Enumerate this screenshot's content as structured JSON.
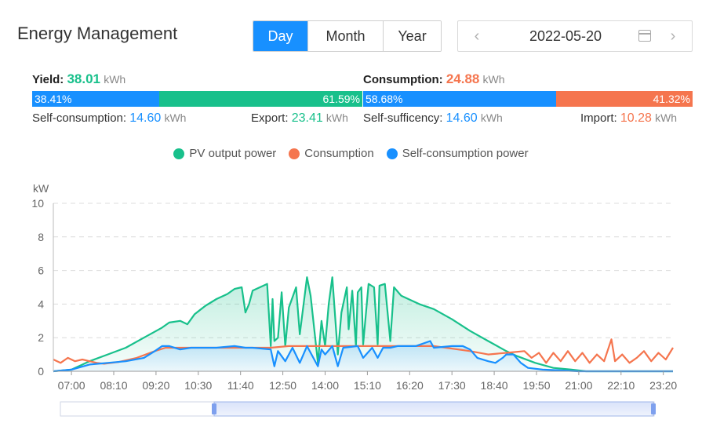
{
  "header": {
    "title": "Energy Management",
    "tabs": [
      "Day",
      "Month",
      "Year"
    ],
    "active_tab": "Day",
    "date": "2022-05-20",
    "prev_icon": "chevron-left-icon",
    "next_icon": "chevron-right-icon",
    "calendar_icon": "calendar-icon"
  },
  "yield": {
    "label": "Yield:",
    "value": "38.01",
    "unit": "kWh",
    "self_consumption_pct": 38.41,
    "self_consumption_pct_label": "38.41%",
    "export_pct": 61.59,
    "export_pct_label": "61.59%",
    "self_consumption_label": "Self-consumption:",
    "self_consumption_value": "14.60",
    "export_label": "Export:",
    "export_value": "23.41"
  },
  "consumption": {
    "label": "Consumption:",
    "value": "24.88",
    "unit": "kWh",
    "self_sufficiency_pct": 58.68,
    "self_sufficiency_pct_label": "58.68%",
    "import_pct": 41.32,
    "import_pct_label": "41.32%",
    "self_sufficiency_label": "Self-sufficency:",
    "self_sufficiency_value": "14.60",
    "import_label": "Import:",
    "import_value": "10.28"
  },
  "colors": {
    "pv": "#18c08b",
    "consumption": "#f5754e",
    "self": "#1890ff",
    "active_tab": "#1890ff"
  },
  "chart_data": {
    "type": "line",
    "ylabel": "kW",
    "ylim": [
      0,
      10
    ],
    "yticks": [
      0,
      2,
      4,
      6,
      8,
      10
    ],
    "xlim": [
      6.5,
      23.6
    ],
    "xticks": [
      "07:00",
      "08:10",
      "09:20",
      "10:30",
      "11:40",
      "12:50",
      "14:00",
      "15:10",
      "16:20",
      "17:30",
      "18:40",
      "19:50",
      "21:00",
      "22:10",
      "23:20"
    ],
    "grid": "horizontal dashed",
    "legend_position": "top-center",
    "series": [
      {
        "name": "PV output power",
        "color": "#18c08b",
        "area": true,
        "points": [
          [
            6.5,
            0
          ],
          [
            7.0,
            0.1
          ],
          [
            7.5,
            0.6
          ],
          [
            8.0,
            1.0
          ],
          [
            8.5,
            1.4
          ],
          [
            9.0,
            2.0
          ],
          [
            9.5,
            2.6
          ],
          [
            9.7,
            2.9
          ],
          [
            10.0,
            3.0
          ],
          [
            10.2,
            2.8
          ],
          [
            10.4,
            3.4
          ],
          [
            10.7,
            3.9
          ],
          [
            11.0,
            4.3
          ],
          [
            11.3,
            4.6
          ],
          [
            11.5,
            4.9
          ],
          [
            11.7,
            5.0
          ],
          [
            11.8,
            3.5
          ],
          [
            11.9,
            4.0
          ],
          [
            12.0,
            4.8
          ],
          [
            12.4,
            5.2
          ],
          [
            12.5,
            1.5
          ],
          [
            12.55,
            4.3
          ],
          [
            12.6,
            1.8
          ],
          [
            12.7,
            2.0
          ],
          [
            12.8,
            4.7
          ],
          [
            12.9,
            1.5
          ],
          [
            13.0,
            3.8
          ],
          [
            13.2,
            5.0
          ],
          [
            13.3,
            2.2
          ],
          [
            13.5,
            5.6
          ],
          [
            13.6,
            4.5
          ],
          [
            13.8,
            0.5
          ],
          [
            13.9,
            3.0
          ],
          [
            14.0,
            1.5
          ],
          [
            14.1,
            4.0
          ],
          [
            14.2,
            5.6
          ],
          [
            14.35,
            1.0
          ],
          [
            14.45,
            3.5
          ],
          [
            14.6,
            5.0
          ],
          [
            14.65,
            2.5
          ],
          [
            14.75,
            4.8
          ],
          [
            14.85,
            1.5
          ],
          [
            14.9,
            4.7
          ],
          [
            15.0,
            5.0
          ],
          [
            15.05,
            1.6
          ],
          [
            15.2,
            5.2
          ],
          [
            15.35,
            5.0
          ],
          [
            15.45,
            1.6
          ],
          [
            15.5,
            5.1
          ],
          [
            15.65,
            5.2
          ],
          [
            15.8,
            1.8
          ],
          [
            15.9,
            5.0
          ],
          [
            16.1,
            4.5
          ],
          [
            16.3,
            4.3
          ],
          [
            16.6,
            4.0
          ],
          [
            17.0,
            3.7
          ],
          [
            17.5,
            3.1
          ],
          [
            18.0,
            2.4
          ],
          [
            18.5,
            1.8
          ],
          [
            19.0,
            1.2
          ],
          [
            19.3,
            0.9
          ],
          [
            19.8,
            0.5
          ],
          [
            20.3,
            0.2
          ],
          [
            20.8,
            0.1
          ],
          [
            21.2,
            0.0
          ],
          [
            23.6,
            0.0
          ]
        ]
      },
      {
        "name": "Consumption",
        "color": "#f5754e",
        "area": false,
        "points": [
          [
            6.5,
            0.7
          ],
          [
            6.7,
            0.5
          ],
          [
            6.9,
            0.8
          ],
          [
            7.1,
            0.6
          ],
          [
            7.3,
            0.7
          ],
          [
            7.5,
            0.6
          ],
          [
            7.7,
            0.5
          ],
          [
            7.9,
            0.45
          ],
          [
            8.3,
            0.55
          ],
          [
            8.8,
            0.8
          ],
          [
            9.3,
            1.2
          ],
          [
            9.6,
            1.4
          ],
          [
            10.0,
            1.4
          ],
          [
            11.0,
            1.4
          ],
          [
            12.0,
            1.4
          ],
          [
            12.5,
            1.4
          ],
          [
            13.0,
            1.5
          ],
          [
            14.0,
            1.5
          ],
          [
            15.0,
            1.5
          ],
          [
            16.0,
            1.5
          ],
          [
            17.0,
            1.5
          ],
          [
            18.0,
            1.2
          ],
          [
            18.5,
            1.0
          ],
          [
            19.0,
            1.1
          ],
          [
            19.5,
            1.2
          ],
          [
            19.7,
            0.8
          ],
          [
            19.9,
            1.1
          ],
          [
            20.1,
            0.5
          ],
          [
            20.3,
            1.1
          ],
          [
            20.5,
            0.6
          ],
          [
            20.7,
            1.2
          ],
          [
            20.9,
            0.6
          ],
          [
            21.1,
            1.1
          ],
          [
            21.3,
            0.5
          ],
          [
            21.5,
            1.0
          ],
          [
            21.7,
            0.6
          ],
          [
            21.9,
            1.9
          ],
          [
            22.0,
            0.6
          ],
          [
            22.2,
            1.0
          ],
          [
            22.4,
            0.5
          ],
          [
            22.6,
            0.8
          ],
          [
            22.8,
            1.2
          ],
          [
            23.0,
            0.6
          ],
          [
            23.2,
            1.1
          ],
          [
            23.4,
            0.7
          ],
          [
            23.6,
            1.4
          ]
        ]
      },
      {
        "name": "Self-consumption power",
        "color": "#1890ff",
        "area": true,
        "points": [
          [
            6.5,
            0
          ],
          [
            7.0,
            0.1
          ],
          [
            7.5,
            0.4
          ],
          [
            8.0,
            0.5
          ],
          [
            8.5,
            0.6
          ],
          [
            9.0,
            0.8
          ],
          [
            9.3,
            1.2
          ],
          [
            9.5,
            1.5
          ],
          [
            9.7,
            1.5
          ],
          [
            10.0,
            1.3
          ],
          [
            10.3,
            1.4
          ],
          [
            11.0,
            1.4
          ],
          [
            11.5,
            1.5
          ],
          [
            11.8,
            1.4
          ],
          [
            12.0,
            1.4
          ],
          [
            12.5,
            1.3
          ],
          [
            12.6,
            0.3
          ],
          [
            12.7,
            1.2
          ],
          [
            12.9,
            0.6
          ],
          [
            13.1,
            1.4
          ],
          [
            13.3,
            0.5
          ],
          [
            13.5,
            1.5
          ],
          [
            13.8,
            0.3
          ],
          [
            13.9,
            1.3
          ],
          [
            14.0,
            1.0
          ],
          [
            14.2,
            1.5
          ],
          [
            14.35,
            0.3
          ],
          [
            14.5,
            1.4
          ],
          [
            14.9,
            1.5
          ],
          [
            15.05,
            0.8
          ],
          [
            15.3,
            1.4
          ],
          [
            15.45,
            0.8
          ],
          [
            15.6,
            1.4
          ],
          [
            15.8,
            1.4
          ],
          [
            16.0,
            1.5
          ],
          [
            16.5,
            1.5
          ],
          [
            16.9,
            1.8
          ],
          [
            17.0,
            1.4
          ],
          [
            17.5,
            1.5
          ],
          [
            17.8,
            1.5
          ],
          [
            18.0,
            1.3
          ],
          [
            18.2,
            0.8
          ],
          [
            18.5,
            0.6
          ],
          [
            18.7,
            0.5
          ],
          [
            18.9,
            0.8
          ],
          [
            19.0,
            1.0
          ],
          [
            19.2,
            1.0
          ],
          [
            19.4,
            0.5
          ],
          [
            19.6,
            0.2
          ],
          [
            20.0,
            0.1
          ],
          [
            20.5,
            0.05
          ],
          [
            21.0,
            0
          ],
          [
            23.6,
            0
          ]
        ]
      }
    ]
  }
}
